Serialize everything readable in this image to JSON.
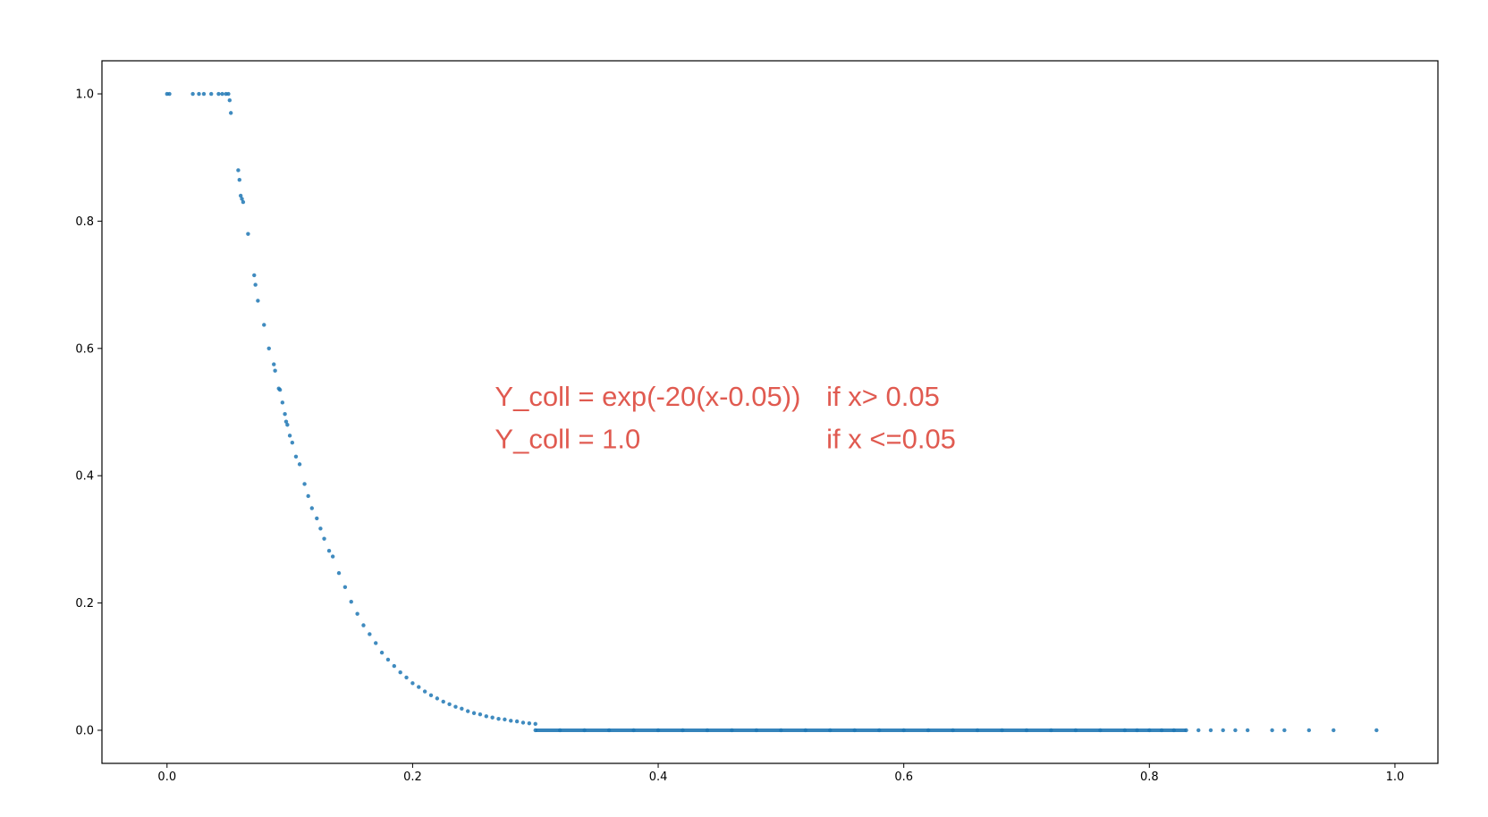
{
  "chart_data": {
    "type": "scatter",
    "title": "",
    "xlabel": "",
    "ylabel": "",
    "xlim": [
      -0.053,
      1.035
    ],
    "ylim": [
      -0.052,
      1.052
    ],
    "xticks": [
      "0.0",
      "0.2",
      "0.4",
      "0.6",
      "0.8",
      "1.0"
    ],
    "xtick_values": [
      0.0,
      0.2,
      0.4,
      0.6,
      0.8,
      1.0
    ],
    "yticks": [
      "0.0",
      "0.2",
      "0.4",
      "0.6",
      "0.8",
      "1.0"
    ],
    "ytick_values": [
      0.0,
      0.2,
      0.4,
      0.6,
      0.8,
      1.0
    ],
    "grid": false,
    "marker_color": "#1f77b4",
    "annotation_color": "#e05a50",
    "annotations": [
      {
        "left": "Y_coll =  exp(-20(x-0.05))",
        "right": "if x> 0.05",
        "x": 0.267,
        "y": 0.51
      },
      {
        "left": "Y_coll = 1.0",
        "right": "if x <=0.05",
        "x": 0.267,
        "y": 0.443
      }
    ],
    "annotation_right_x": 0.537,
    "series": [
      {
        "formula": "y = 1.0 if x <= 0.05; y = exp(-20(x-0.05)) if 0.05 < x <= 0.3; y = 0 if x > 0.3",
        "x": [
          0.0,
          0.002,
          0.021,
          0.026,
          0.03,
          0.036,
          0.042,
          0.045,
          0.048,
          0.05,
          0.051,
          0.052,
          0.058,
          0.059,
          0.06,
          0.061,
          0.062,
          0.066,
          0.071,
          0.072,
          0.074,
          0.079,
          0.083,
          0.087,
          0.088,
          0.091,
          0.092,
          0.094,
          0.096,
          0.097,
          0.098,
          0.1,
          0.102,
          0.105,
          0.108,
          0.112,
          0.115,
          0.118,
          0.122,
          0.125,
          0.128,
          0.132,
          0.135,
          0.14,
          0.145,
          0.15,
          0.155,
          0.16,
          0.165,
          0.17,
          0.175,
          0.18,
          0.185,
          0.19,
          0.195,
          0.2,
          0.205,
          0.21,
          0.215,
          0.22,
          0.225,
          0.23,
          0.235,
          0.24,
          0.245,
          0.25,
          0.255,
          0.26,
          0.265,
          0.27,
          0.275,
          0.28,
          0.285,
          0.29,
          0.295,
          0.3,
          0.3,
          0.32,
          0.34,
          0.36,
          0.38,
          0.4,
          0.42,
          0.44,
          0.46,
          0.48,
          0.5,
          0.52,
          0.54,
          0.56,
          0.58,
          0.6,
          0.62,
          0.64,
          0.66,
          0.68,
          0.7,
          0.72,
          0.74,
          0.76,
          0.78,
          0.79,
          0.8,
          0.81,
          0.82,
          0.83,
          0.84,
          0.85,
          0.86,
          0.87,
          0.88,
          0.9,
          0.91,
          0.93,
          0.95,
          0.985
        ],
        "y": [
          1.0,
          1.0,
          1.0,
          1.0,
          1.0,
          1.0,
          1.0,
          1.0,
          1.0,
          1.0,
          0.99,
          0.97,
          0.88,
          0.865,
          0.84,
          0.835,
          0.83,
          0.78,
          0.715,
          0.7,
          0.675,
          0.637,
          0.6,
          0.575,
          0.565,
          0.537,
          0.535,
          0.515,
          0.497,
          0.485,
          0.48,
          0.463,
          0.452,
          0.43,
          0.418,
          0.387,
          0.368,
          0.349,
          0.333,
          0.317,
          0.301,
          0.282,
          0.273,
          0.247,
          0.225,
          0.202,
          0.183,
          0.165,
          0.151,
          0.137,
          0.122,
          0.111,
          0.101,
          0.091,
          0.083,
          0.074,
          0.068,
          0.061,
          0.055,
          0.05,
          0.045,
          0.041,
          0.037,
          0.034,
          0.03,
          0.027,
          0.025,
          0.022,
          0.02,
          0.018,
          0.017,
          0.015,
          0.014,
          0.012,
          0.011,
          0.01,
          0,
          0,
          0,
          0,
          0,
          0,
          0,
          0,
          0,
          0,
          0,
          0,
          0,
          0,
          0,
          0,
          0,
          0,
          0,
          0,
          0,
          0,
          0,
          0,
          0,
          0,
          0,
          0,
          0,
          0,
          0,
          0,
          0,
          0,
          0,
          0,
          0,
          0,
          0,
          0
        ]
      }
    ]
  }
}
